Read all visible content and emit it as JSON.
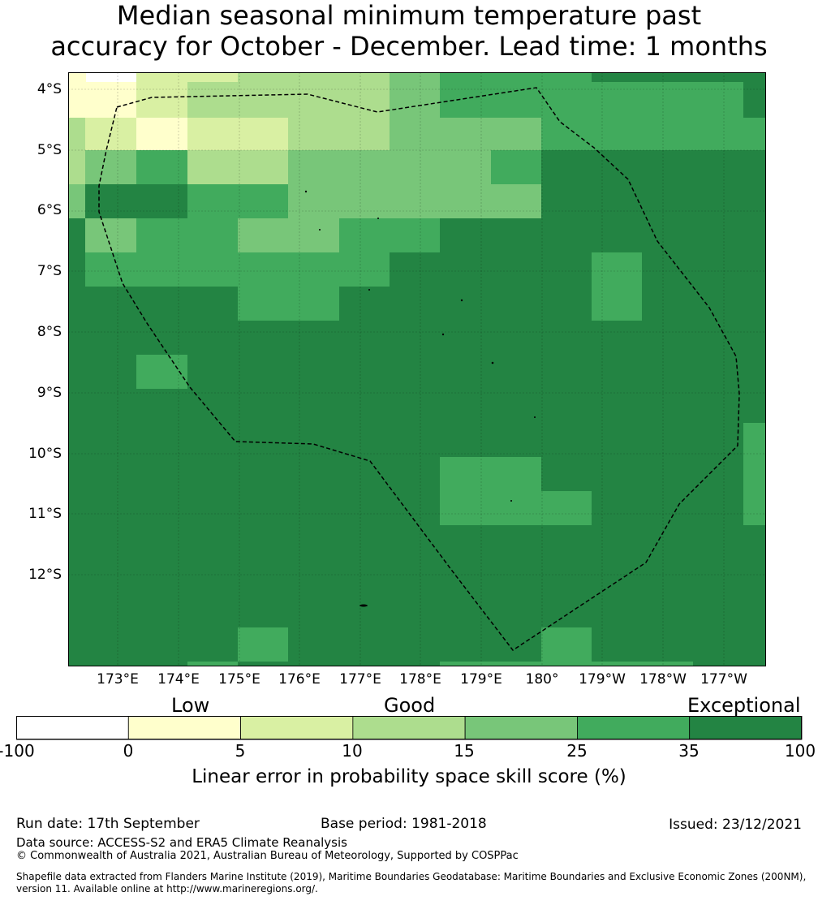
{
  "title": {
    "line1": "Median seasonal minimum temperature past",
    "line2": "accuracy for October - December. Lead time: 1 months"
  },
  "map": {
    "lat_ticks": [
      "4°S",
      "5°S",
      "6°S",
      "7°S",
      "8°S",
      "9°S",
      "10°S",
      "11°S",
      "12°S"
    ],
    "lon_ticks": [
      "173°E",
      "174°E",
      "175°E",
      "176°E",
      "177°E",
      "178°E",
      "179°E",
      "180°",
      "179°W",
      "178°W",
      "177°W"
    ]
  },
  "categories": {
    "low": "Low",
    "good": "Good",
    "exceptional": "Exceptional"
  },
  "colorbar": {
    "ticks": [
      "-100",
      "0",
      "5",
      "10",
      "15",
      "25",
      "35",
      "100"
    ],
    "colors": [
      "#ffffff",
      "#ffffcc",
      "#d9f0a3",
      "#addd8e",
      "#78c679",
      "#41ab5d",
      "#238443"
    ],
    "label": "Linear error in probability space skill score (%)"
  },
  "footer": {
    "run_date": "Run date: 17th September",
    "base_period": "Base period: 1981-2018",
    "issued": "Issued: 23/12/2021",
    "data_source": "Data source: ACCESS-S2 and ERA5 Climate Reanalysis",
    "copyright": "© Commonwealth of Australia 2021, Australian Bureau of Meteorology, Supported by COSPPac",
    "shapefile_line1": "Shapefile data extracted from Flanders Marine Institute (2019), Maritime Boundaries Geodatabase: Maritime Boundaries and Exclusive Economic Zones (200NM),",
    "shapefile_line2": "version 11. Available online at http://www.marineregions.org/."
  }
}
